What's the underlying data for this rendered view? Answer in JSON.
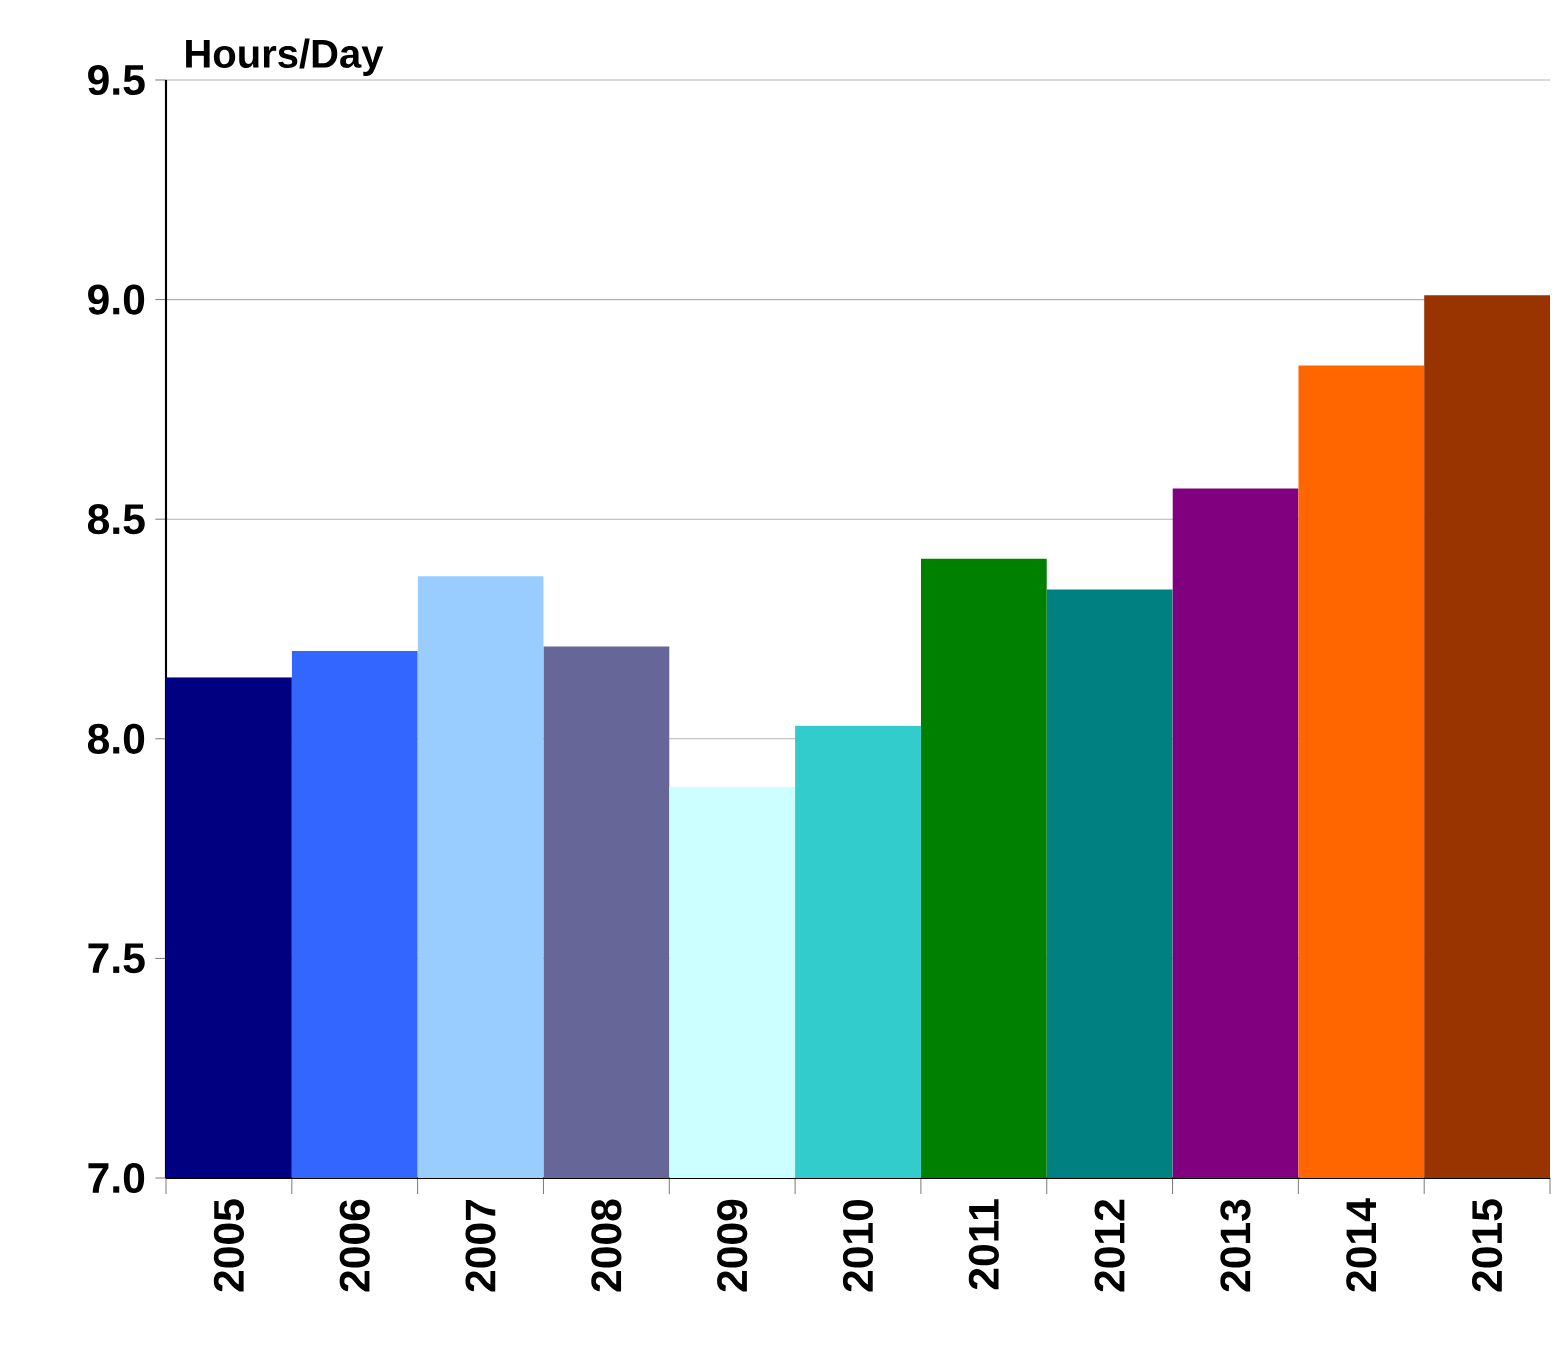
{
  "chart_data": {
    "type": "bar",
    "ylabel": "Hours/Day",
    "categories": [
      "2005",
      "2006",
      "2007",
      "2008",
      "2009",
      "2010",
      "2011",
      "2012",
      "2013",
      "2014",
      "2015"
    ],
    "values": [
      8.14,
      8.2,
      8.37,
      8.21,
      7.89,
      8.03,
      8.41,
      8.34,
      8.57,
      8.85,
      9.01
    ],
    "colors": [
      "#000080",
      "#3366ff",
      "#99ccff",
      "#666699",
      "#ccffff",
      "#33cccc",
      "#008000",
      "#008080",
      "#800080",
      "#ff6600",
      "#993300"
    ],
    "ylim": [
      7,
      9.5
    ],
    "yticks": [
      {
        "value": 7,
        "label": "7.0"
      },
      {
        "value": 7.5,
        "label": "7.5"
      },
      {
        "value": 8,
        "label": "8.0"
      },
      {
        "value": 8.5,
        "label": "8.5"
      },
      {
        "value": 9,
        "label": "9.0"
      },
      {
        "value": 9.5,
        "label": "9.5"
      }
    ],
    "grid": "y"
  }
}
